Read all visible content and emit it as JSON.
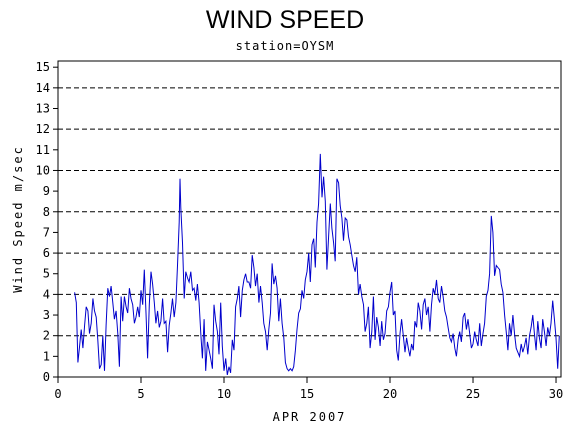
{
  "chart_data": {
    "type": "line",
    "title": "WIND SPEED",
    "subtitle": "station=OYSM",
    "xlabel": "APR 2007",
    "ylabel": "Wind Speed m/sec",
    "xlim": [
      0,
      30.3
    ],
    "ylim": [
      0,
      15.3
    ],
    "x_ticks": [
      0,
      5,
      10,
      15,
      20,
      25,
      30
    ],
    "y_ticks": [
      0,
      1,
      2,
      3,
      4,
      5,
      6,
      7,
      8,
      9,
      10,
      11,
      12,
      13,
      14,
      15
    ],
    "dashed_gridlines_y": [
      2,
      4,
      6,
      8,
      10,
      12,
      14
    ],
    "line_color": "#0000cc",
    "grid_color": "#000000",
    "series": [
      {
        "values": [
          [
            1.0,
            4.1
          ],
          [
            1.1,
            3.6
          ],
          [
            1.2,
            0.7
          ],
          [
            1.3,
            1.5
          ],
          [
            1.4,
            2.3
          ],
          [
            1.5,
            1.4
          ],
          [
            1.6,
            2.5
          ],
          [
            1.7,
            3.4
          ],
          [
            1.8,
            3.2
          ],
          [
            1.9,
            2.1
          ],
          [
            2.0,
            2.6
          ],
          [
            2.1,
            3.8
          ],
          [
            2.2,
            3.2
          ],
          [
            2.3,
            2.9
          ],
          [
            2.4,
            1.8
          ],
          [
            2.5,
            0.4
          ],
          [
            2.6,
            0.6
          ],
          [
            2.7,
            2.0
          ],
          [
            2.8,
            0.3
          ],
          [
            2.9,
            2.5
          ],
          [
            3.0,
            4.3
          ],
          [
            3.1,
            3.9
          ],
          [
            3.2,
            4.4
          ],
          [
            3.3,
            3.6
          ],
          [
            3.4,
            2.8
          ],
          [
            3.5,
            3.2
          ],
          [
            3.6,
            2.1
          ],
          [
            3.7,
            0.5
          ],
          [
            3.8,
            3.9
          ],
          [
            3.9,
            2.7
          ],
          [
            4.0,
            3.9
          ],
          [
            4.1,
            3.4
          ],
          [
            4.2,
            3.1
          ],
          [
            4.3,
            4.3
          ],
          [
            4.4,
            3.8
          ],
          [
            4.5,
            3.5
          ],
          [
            4.6,
            2.6
          ],
          [
            4.7,
            2.9
          ],
          [
            4.8,
            3.4
          ],
          [
            4.9,
            2.9
          ],
          [
            5.0,
            4.2
          ],
          [
            5.1,
            3.5
          ],
          [
            5.2,
            5.2
          ],
          [
            5.3,
            3.1
          ],
          [
            5.4,
            0.9
          ],
          [
            5.5,
            3.5
          ],
          [
            5.6,
            5.1
          ],
          [
            5.7,
            4.5
          ],
          [
            5.8,
            3.6
          ],
          [
            5.9,
            2.6
          ],
          [
            6.0,
            3.2
          ],
          [
            6.1,
            2.4
          ],
          [
            6.2,
            2.7
          ],
          [
            6.3,
            3.8
          ],
          [
            6.4,
            2.6
          ],
          [
            6.5,
            2.7
          ],
          [
            6.6,
            1.2
          ],
          [
            6.7,
            2.5
          ],
          [
            6.8,
            3.1
          ],
          [
            6.9,
            3.8
          ],
          [
            7.0,
            2.9
          ],
          [
            7.1,
            3.6
          ],
          [
            7.2,
            5.4
          ],
          [
            7.3,
            7.5
          ],
          [
            7.35,
            9.6
          ],
          [
            7.4,
            8.2
          ],
          [
            7.5,
            6.5
          ],
          [
            7.6,
            3.8
          ],
          [
            7.7,
            5.1
          ],
          [
            7.8,
            4.8
          ],
          [
            7.9,
            4.6
          ],
          [
            8.0,
            5.1
          ],
          [
            8.1,
            4.2
          ],
          [
            8.2,
            4.3
          ],
          [
            8.3,
            3.7
          ],
          [
            8.4,
            4.5
          ],
          [
            8.5,
            3.6
          ],
          [
            8.6,
            2.1
          ],
          [
            8.7,
            0.9
          ],
          [
            8.8,
            2.8
          ],
          [
            8.9,
            0.3
          ],
          [
            9.0,
            1.7
          ],
          [
            9.1,
            1.3
          ],
          [
            9.2,
            0.9
          ],
          [
            9.3,
            0.4
          ],
          [
            9.4,
            3.5
          ],
          [
            9.5,
            2.7
          ],
          [
            9.6,
            2.2
          ],
          [
            9.7,
            1.1
          ],
          [
            9.8,
            3.6
          ],
          [
            9.9,
            1.5
          ],
          [
            10.0,
            0.3
          ],
          [
            10.1,
            0.9
          ],
          [
            10.2,
            0.1
          ],
          [
            10.3,
            0.5
          ],
          [
            10.4,
            0.2
          ],
          [
            10.5,
            1.8
          ],
          [
            10.6,
            1.3
          ],
          [
            10.7,
            3.4
          ],
          [
            10.8,
            3.8
          ],
          [
            10.9,
            4.4
          ],
          [
            11.0,
            2.9
          ],
          [
            11.1,
            4.2
          ],
          [
            11.2,
            4.7
          ],
          [
            11.3,
            5.0
          ],
          [
            11.4,
            4.6
          ],
          [
            11.5,
            4.6
          ],
          [
            11.6,
            4.3
          ],
          [
            11.7,
            5.9
          ],
          [
            11.8,
            5.3
          ],
          [
            11.9,
            4.4
          ],
          [
            12.0,
            5.0
          ],
          [
            12.1,
            3.6
          ],
          [
            12.2,
            4.4
          ],
          [
            12.3,
            3.6
          ],
          [
            12.4,
            2.6
          ],
          [
            12.5,
            2.2
          ],
          [
            12.6,
            1.3
          ],
          [
            12.7,
            2.3
          ],
          [
            12.8,
            3.1
          ],
          [
            12.9,
            5.5
          ],
          [
            13.0,
            4.5
          ],
          [
            13.1,
            4.9
          ],
          [
            13.2,
            4.3
          ],
          [
            13.3,
            2.7
          ],
          [
            13.4,
            3.8
          ],
          [
            13.5,
            2.6
          ],
          [
            13.6,
            1.9
          ],
          [
            13.7,
            0.7
          ],
          [
            13.8,
            0.4
          ],
          [
            13.9,
            0.3
          ],
          [
            14.0,
            0.4
          ],
          [
            14.1,
            0.3
          ],
          [
            14.2,
            0.5
          ],
          [
            14.3,
            1.3
          ],
          [
            14.4,
            2.3
          ],
          [
            14.5,
            3.1
          ],
          [
            14.6,
            3.3
          ],
          [
            14.7,
            4.2
          ],
          [
            14.8,
            3.8
          ],
          [
            14.9,
            4.7
          ],
          [
            15.0,
            5.1
          ],
          [
            15.1,
            6.0
          ],
          [
            15.2,
            4.6
          ],
          [
            15.3,
            6.4
          ],
          [
            15.4,
            6.7
          ],
          [
            15.5,
            5.3
          ],
          [
            15.6,
            7.5
          ],
          [
            15.7,
            8.4
          ],
          [
            15.8,
            10.8
          ],
          [
            15.9,
            8.7
          ],
          [
            16.0,
            9.7
          ],
          [
            16.1,
            8.5
          ],
          [
            16.2,
            5.2
          ],
          [
            16.3,
            6.8
          ],
          [
            16.4,
            8.4
          ],
          [
            16.5,
            7.2
          ],
          [
            16.6,
            6.5
          ],
          [
            16.7,
            5.6
          ],
          [
            16.8,
            9.6
          ],
          [
            16.9,
            9.4
          ],
          [
            17.0,
            8.3
          ],
          [
            17.1,
            7.7
          ],
          [
            17.2,
            6.6
          ],
          [
            17.3,
            7.7
          ],
          [
            17.4,
            7.6
          ],
          [
            17.5,
            6.8
          ],
          [
            17.6,
            6.4
          ],
          [
            17.7,
            5.9
          ],
          [
            17.8,
            5.4
          ],
          [
            17.9,
            5.1
          ],
          [
            18.0,
            5.8
          ],
          [
            18.1,
            4.0
          ],
          [
            18.2,
            4.5
          ],
          [
            18.3,
            3.9
          ],
          [
            18.4,
            3.5
          ],
          [
            18.5,
            2.2
          ],
          [
            18.6,
            2.6
          ],
          [
            18.7,
            3.4
          ],
          [
            18.8,
            1.4
          ],
          [
            18.9,
            2.2
          ],
          [
            19.0,
            3.9
          ],
          [
            19.1,
            1.8
          ],
          [
            19.2,
            2.9
          ],
          [
            19.3,
            2.4
          ],
          [
            19.4,
            1.5
          ],
          [
            19.5,
            2.7
          ],
          [
            19.6,
            1.8
          ],
          [
            19.7,
            2.1
          ],
          [
            19.8,
            3.2
          ],
          [
            19.9,
            3.4
          ],
          [
            20.0,
            4.1
          ],
          [
            20.1,
            4.6
          ],
          [
            20.2,
            3.0
          ],
          [
            20.3,
            3.2
          ],
          [
            20.4,
            1.3
          ],
          [
            20.5,
            0.8
          ],
          [
            20.6,
            2.1
          ],
          [
            20.7,
            2.8
          ],
          [
            20.8,
            2.0
          ],
          [
            20.9,
            1.2
          ],
          [
            21.0,
            1.9
          ],
          [
            21.1,
            1.4
          ],
          [
            21.2,
            1.0
          ],
          [
            21.3,
            1.6
          ],
          [
            21.4,
            1.3
          ],
          [
            21.5,
            2.7
          ],
          [
            21.6,
            2.4
          ],
          [
            21.7,
            3.6
          ],
          [
            21.8,
            3.2
          ],
          [
            21.9,
            2.3
          ],
          [
            22.0,
            3.5
          ],
          [
            22.1,
            3.8
          ],
          [
            22.2,
            3.0
          ],
          [
            22.3,
            3.4
          ],
          [
            22.4,
            2.2
          ],
          [
            22.5,
            3.5
          ],
          [
            22.6,
            4.3
          ],
          [
            22.7,
            4.0
          ],
          [
            22.8,
            4.7
          ],
          [
            22.9,
            3.8
          ],
          [
            23.0,
            3.6
          ],
          [
            23.1,
            4.4
          ],
          [
            23.2,
            3.9
          ],
          [
            23.3,
            3.2
          ],
          [
            23.4,
            2.9
          ],
          [
            23.5,
            2.4
          ],
          [
            23.6,
            1.9
          ],
          [
            23.7,
            1.7
          ],
          [
            23.8,
            2.1
          ],
          [
            23.9,
            1.4
          ],
          [
            24.0,
            1.0
          ],
          [
            24.1,
            1.8
          ],
          [
            24.2,
            2.2
          ],
          [
            24.3,
            1.7
          ],
          [
            24.4,
            2.9
          ],
          [
            24.5,
            3.1
          ],
          [
            24.6,
            2.3
          ],
          [
            24.7,
            2.8
          ],
          [
            24.8,
            2.1
          ],
          [
            24.9,
            1.4
          ],
          [
            25.0,
            1.6
          ],
          [
            25.1,
            2.2
          ],
          [
            25.2,
            1.8
          ],
          [
            25.3,
            1.5
          ],
          [
            25.4,
            2.6
          ],
          [
            25.5,
            1.5
          ],
          [
            25.6,
            2.1
          ],
          [
            25.7,
            2.6
          ],
          [
            25.8,
            3.9
          ],
          [
            25.9,
            4.2
          ],
          [
            26.0,
            5.0
          ],
          [
            26.1,
            7.8
          ],
          [
            26.2,
            7.0
          ],
          [
            26.3,
            4.9
          ],
          [
            26.4,
            5.4
          ],
          [
            26.5,
            5.3
          ],
          [
            26.6,
            5.2
          ],
          [
            26.7,
            4.5
          ],
          [
            26.8,
            4.1
          ],
          [
            26.9,
            3.0
          ],
          [
            27.0,
            2.2
          ],
          [
            27.1,
            1.3
          ],
          [
            27.2,
            2.6
          ],
          [
            27.3,
            2.0
          ],
          [
            27.4,
            3.0
          ],
          [
            27.5,
            2.1
          ],
          [
            27.6,
            1.4
          ],
          [
            27.7,
            1.2
          ],
          [
            27.8,
            1.0
          ],
          [
            27.9,
            1.6
          ],
          [
            28.0,
            1.2
          ],
          [
            28.1,
            1.5
          ],
          [
            28.2,
            1.9
          ],
          [
            28.3,
            1.1
          ],
          [
            28.4,
            2.0
          ],
          [
            28.5,
            2.4
          ],
          [
            28.6,
            3.0
          ],
          [
            28.7,
            2.1
          ],
          [
            28.8,
            1.3
          ],
          [
            28.9,
            2.7
          ],
          [
            29.0,
            1.9
          ],
          [
            29.1,
            1.4
          ],
          [
            29.2,
            2.8
          ],
          [
            29.3,
            2.2
          ],
          [
            29.4,
            1.5
          ],
          [
            29.5,
            2.4
          ],
          [
            29.6,
            2.0
          ],
          [
            29.7,
            2.6
          ],
          [
            29.8,
            3.7
          ],
          [
            29.9,
            2.8
          ],
          [
            30.0,
            1.9
          ],
          [
            30.1,
            0.4
          ],
          [
            30.2,
            2.0
          ]
        ]
      }
    ]
  }
}
